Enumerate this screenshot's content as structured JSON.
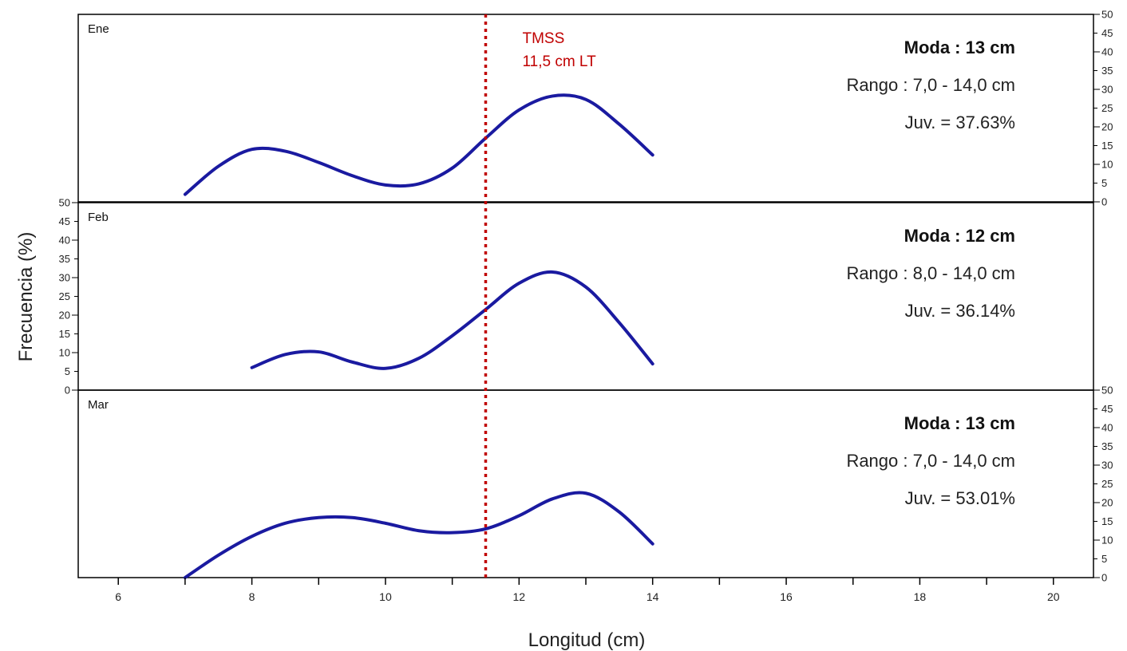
{
  "chart_data": {
    "type": "line",
    "xlabel": "Longitud (cm)",
    "ylabel": "Frecuencia (%)",
    "xlim": [
      5.4,
      20.6
    ],
    "x_ticks": [
      6,
      8,
      10,
      12,
      14,
      16,
      18,
      20
    ],
    "ylim": [
      0,
      50
    ],
    "y_ticks": [
      0,
      5,
      10,
      15,
      20,
      25,
      30,
      35,
      40,
      45,
      50
    ],
    "grid": false,
    "line_color": "#1a1aa0",
    "reference_line": {
      "x": 11.5,
      "color": "#c00000",
      "style": "dotted",
      "label_lines": [
        "TMSS",
        "11,5 cm LT"
      ]
    },
    "panels": [
      {
        "name": "Ene",
        "moda": "Moda : 13 cm",
        "rango": "Rango : 7,0 - 14,0 cm",
        "juv": "Juv. = 37.63%",
        "y_axis_side": "right",
        "x": [
          7,
          7.5,
          8,
          8.5,
          9,
          9.5,
          10,
          10.5,
          11,
          11.5,
          12,
          12.5,
          13,
          13.5,
          14
        ],
        "values": [
          2,
          9.5,
          14,
          13.5,
          10.5,
          7,
          4.5,
          4.8,
          9,
          17,
          24.5,
          28.2,
          27.3,
          20.7,
          12.5
        ]
      },
      {
        "name": "Feb",
        "moda": "Moda : 12 cm",
        "rango": "Rango : 8,0 - 14,0 cm",
        "juv": "Juv. = 36.14%",
        "y_axis_side": "left",
        "x": [
          8,
          8.5,
          9,
          9.5,
          10,
          10.5,
          11,
          11.5,
          12,
          12.5,
          13,
          13.5,
          14
        ],
        "values": [
          6,
          9.5,
          10.2,
          7.5,
          5.8,
          8.5,
          14.5,
          21.5,
          28.5,
          31.5,
          27.5,
          18,
          7
        ]
      },
      {
        "name": "Mar",
        "moda": "Moda : 13 cm",
        "rango": "Rango : 7,0 - 14,0 cm",
        "juv": "Juv. = 53.01%",
        "y_axis_side": "right",
        "x": [
          7,
          7.5,
          8,
          8.5,
          9,
          9.5,
          10,
          10.5,
          11,
          11.5,
          12,
          12.5,
          13,
          13.5,
          14
        ],
        "values": [
          0,
          6,
          11,
          14.5,
          16,
          16,
          14.5,
          12.5,
          12,
          13,
          16.5,
          21,
          22.5,
          17.5,
          9
        ]
      }
    ]
  }
}
